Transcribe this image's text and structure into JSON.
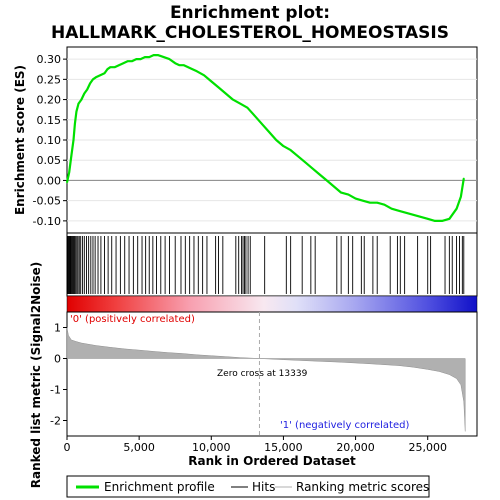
{
  "title_line1": "Enrichment plot:",
  "title_line2": "HALLMARK_CHOLESTEROL_HOMEOSTASIS",
  "colors": {
    "enrichment_line": "#00e000",
    "hit_line": "#000000",
    "metric_fill": "#b0b0b0",
    "positive_note": "#e00000",
    "negative_note": "#2020e0",
    "red_end": "#e00000",
    "blue_end": "#1010c8",
    "zero_line": "#aaaaaa"
  },
  "legend": {
    "enrichment": "Enrichment profile",
    "hits": "Hits",
    "ranking": "Ranking metric scores"
  },
  "notes": {
    "positive": "'0' (positively correlated)",
    "negative": "'1' (negatively correlated)",
    "zero_cross": "Zero cross at 13339"
  },
  "chart_data": [
    {
      "type": "line",
      "name": "enrichment-profile",
      "ylabel": "Enrichment score (ES)",
      "xlim": [
        0,
        28000
      ],
      "ylim": [
        -0.13,
        0.33
      ],
      "yticks": [
        -0.1,
        -0.05,
        0.0,
        0.05,
        0.1,
        0.15,
        0.2,
        0.25,
        0.3
      ],
      "ytick_labels": [
        "-0.10",
        "-0.05",
        "0.00",
        "0.05",
        "0.10",
        "0.15",
        "0.20",
        "0.25",
        "0.30"
      ],
      "grid": true,
      "x": [
        0,
        150,
        300,
        450,
        550,
        650,
        800,
        1000,
        1200,
        1400,
        1600,
        1800,
        2000,
        2300,
        2600,
        2800,
        3000,
        3300,
        3600,
        3900,
        4200,
        4500,
        4800,
        5100,
        5400,
        5700,
        6000,
        6300,
        6700,
        7100,
        7500,
        7800,
        8100,
        8400,
        8700,
        9000,
        9500,
        10000,
        10500,
        11000,
        11500,
        12000,
        12500,
        13000,
        13500,
        14000,
        14500,
        15000,
        15500,
        16000,
        16500,
        17000,
        17500,
        18000,
        18500,
        19000,
        19500,
        20000,
        20500,
        21000,
        21500,
        22000,
        22500,
        23000,
        23500,
        24000,
        24500,
        25000,
        25500,
        26000,
        26500,
        27000,
        27300,
        27500
      ],
      "y": [
        -0.005,
        0.02,
        0.06,
        0.1,
        0.14,
        0.17,
        0.19,
        0.2,
        0.215,
        0.225,
        0.24,
        0.25,
        0.255,
        0.26,
        0.265,
        0.275,
        0.28,
        0.28,
        0.285,
        0.29,
        0.295,
        0.295,
        0.3,
        0.3,
        0.305,
        0.305,
        0.31,
        0.31,
        0.305,
        0.3,
        0.29,
        0.285,
        0.285,
        0.28,
        0.275,
        0.27,
        0.26,
        0.245,
        0.23,
        0.215,
        0.2,
        0.19,
        0.18,
        0.16,
        0.14,
        0.12,
        0.1,
        0.085,
        0.075,
        0.06,
        0.045,
        0.03,
        0.015,
        0.0,
        -0.015,
        -0.03,
        -0.035,
        -0.045,
        -0.05,
        -0.055,
        -0.055,
        -0.06,
        -0.07,
        -0.075,
        -0.08,
        -0.085,
        -0.09,
        -0.095,
        -0.1,
        -0.1,
        -0.095,
        -0.07,
        -0.04,
        0.005
      ],
      "hits": [
        20,
        60,
        110,
        160,
        210,
        270,
        330,
        390,
        450,
        520,
        600,
        680,
        760,
        850,
        950,
        1080,
        1200,
        1350,
        1500,
        1650,
        1800,
        1950,
        2150,
        2350,
        2600,
        2850,
        3100,
        3400,
        3700,
        4000,
        4300,
        4600,
        4900,
        5200,
        5450,
        5700,
        5950,
        6200,
        6500,
        6800,
        7100,
        7500,
        7900,
        8200,
        8500,
        8800,
        9100,
        9400,
        9700,
        10300,
        10500,
        10800,
        11700,
        11900,
        12100,
        12200,
        12300,
        12400,
        12550,
        12700,
        13700,
        15200,
        15500,
        16300,
        16900,
        17200,
        18700,
        19000,
        19500,
        19800,
        20400,
        20600,
        21200,
        21500,
        22400,
        22900,
        23100,
        23400,
        24300,
        25000,
        25200,
        26200,
        26500,
        26700,
        27000,
        27200,
        27400,
        27500
      ]
    },
    {
      "type": "area",
      "name": "ranking-metric",
      "xlabel": "Rank in Ordered Dataset",
      "ylabel": "Ranked list metric (Signal2Noise)",
      "xlim": [
        0,
        28000
      ],
      "ylim": [
        -2.5,
        1.5
      ],
      "xticks": [
        0,
        5000,
        10000,
        15000,
        20000,
        25000
      ],
      "xtick_labels": [
        "0",
        "5,000",
        "10,000",
        "15,000",
        "20,000",
        "25,000"
      ],
      "yticks": [
        -2,
        -1,
        0,
        1
      ],
      "ytick_labels": [
        "-2",
        "-1",
        "0",
        "1"
      ],
      "zero_cross": 13339,
      "x": [
        0,
        100,
        300,
        600,
        1000,
        2000,
        3000,
        4000,
        5000,
        6000,
        7000,
        8000,
        9000,
        10000,
        11000,
        12000,
        13339,
        15000,
        17000,
        19000,
        21000,
        23000,
        24000,
        25000,
        25800,
        26500,
        27000,
        27300,
        27500,
        27600
      ],
      "y": [
        1.0,
        0.75,
        0.6,
        0.55,
        0.5,
        0.42,
        0.36,
        0.31,
        0.27,
        0.23,
        0.19,
        0.16,
        0.12,
        0.09,
        0.06,
        0.03,
        0.0,
        -0.04,
        -0.08,
        -0.12,
        -0.17,
        -0.23,
        -0.28,
        -0.35,
        -0.42,
        -0.52,
        -0.65,
        -0.85,
        -1.4,
        -2.35
      ]
    }
  ]
}
